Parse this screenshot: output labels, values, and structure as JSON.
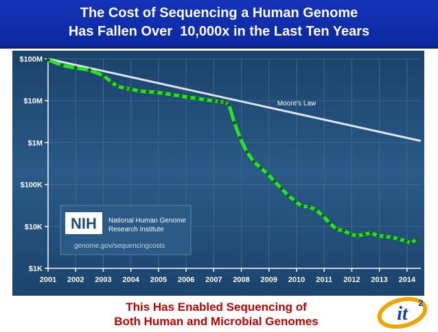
{
  "title": {
    "line1": "The Cost of Sequencing a Human Genome",
    "line2": "Has Fallen Over  10,000x in the Last Ten Years"
  },
  "caption": {
    "line1": "This Has Enabled Sequencing of",
    "line2": "Both Human and Microbial Genomes"
  },
  "logo": {
    "icon": "it2-logo",
    "text": "it",
    "superscript": "2"
  },
  "colors": {
    "title_bg": "#1433b8",
    "chart_bg": "#1f4a73",
    "series": "#22e622",
    "markers": "#1a5c1a",
    "moores_law": "#ffffff",
    "caption": "#c00000"
  },
  "nih_box": {
    "icon": "nih-logo",
    "abbr": "NIH",
    "name_line1": "National Human Genome",
    "name_line2": "Research Institute",
    "url": "genome.gov/sequencingcosts"
  },
  "chart_data": {
    "type": "line",
    "title": "",
    "xlabel": "",
    "ylabel": "",
    "yscale": "log",
    "ylim": [
      1000,
      100000000
    ],
    "xlim": [
      2001,
      2014.5
    ],
    "grid": true,
    "x_ticks": [
      {
        "value": 2001,
        "label": "2001"
      },
      {
        "value": 2002,
        "label": "2002"
      },
      {
        "value": 2003,
        "label": "2003"
      },
      {
        "value": 2004,
        "label": "2004"
      },
      {
        "value": 2005,
        "label": "2005"
      },
      {
        "value": 2006,
        "label": "2006"
      },
      {
        "value": 2007,
        "label": "2007"
      },
      {
        "value": 2008,
        "label": "2008"
      },
      {
        "value": 2009,
        "label": "2009"
      },
      {
        "value": 2010,
        "label": "2010"
      },
      {
        "value": 2011,
        "label": "2011"
      },
      {
        "value": 2012,
        "label": "2012"
      },
      {
        "value": 2013,
        "label": "2013"
      },
      {
        "value": 2014,
        "label": "2014"
      }
    ],
    "y_ticks": [
      {
        "value": 100000000,
        "label": "$100M"
      },
      {
        "value": 10000000,
        "label": "$10M"
      },
      {
        "value": 1000000,
        "label": "$1M"
      },
      {
        "value": 100000,
        "label": "$100K"
      },
      {
        "value": 10000,
        "label": "$10K"
      },
      {
        "value": 1000,
        "label": "$1K"
      }
    ],
    "series": [
      {
        "points": [
          [
            2001.0,
            95000000
          ],
          [
            2001.5,
            70000000
          ],
          [
            2002.0,
            61000000
          ],
          [
            2002.5,
            54000000
          ],
          [
            2003.0,
            40000000
          ],
          [
            2003.3,
            28000000
          ],
          [
            2003.5,
            22000000
          ],
          [
            2003.8,
            20000000
          ],
          [
            2004.0,
            19000000
          ],
          [
            2004.3,
            17000000
          ],
          [
            2004.6,
            16500000
          ],
          [
            2004.9,
            16000000
          ],
          [
            2005.2,
            15000000
          ],
          [
            2005.5,
            14000000
          ],
          [
            2005.8,
            13000000
          ],
          [
            2006.1,
            12000000
          ],
          [
            2006.4,
            11500000
          ],
          [
            2006.7,
            10500000
          ],
          [
            2007.0,
            10000000
          ],
          [
            2007.2,
            9500000
          ],
          [
            2007.4,
            9300000
          ],
          [
            2007.55,
            8000000
          ],
          [
            2007.75,
            3000000
          ],
          [
            2007.95,
            1300000
          ],
          [
            2008.2,
            600000
          ],
          [
            2008.45,
            350000
          ],
          [
            2008.7,
            250000
          ],
          [
            2008.95,
            180000
          ],
          [
            2009.2,
            120000
          ],
          [
            2009.45,
            80000
          ],
          [
            2009.7,
            55000
          ],
          [
            2009.95,
            40000
          ],
          [
            2010.2,
            30000
          ],
          [
            2010.45,
            30000
          ],
          [
            2010.7,
            25000
          ],
          [
            2010.95,
            18000
          ],
          [
            2011.2,
            12000
          ],
          [
            2011.45,
            8500
          ],
          [
            2011.7,
            8000
          ],
          [
            2011.95,
            6500
          ],
          [
            2012.2,
            6000
          ],
          [
            2012.45,
            6500
          ],
          [
            2012.7,
            7000
          ],
          [
            2012.95,
            6000
          ],
          [
            2013.2,
            5800
          ],
          [
            2013.45,
            5500
          ],
          [
            2013.7,
            5000
          ],
          [
            2013.95,
            4500
          ],
          [
            2014.15,
            4000
          ],
          [
            2014.35,
            5000
          ]
        ]
      },
      {
        "name": "Moore's Law",
        "points": [
          [
            2001.0,
            100000000
          ],
          [
            2014.5,
            1100000
          ]
        ]
      }
    ],
    "annotations": [
      {
        "text": "Moore's Law",
        "x": 2009.3,
        "y": 7800000
      }
    ]
  }
}
